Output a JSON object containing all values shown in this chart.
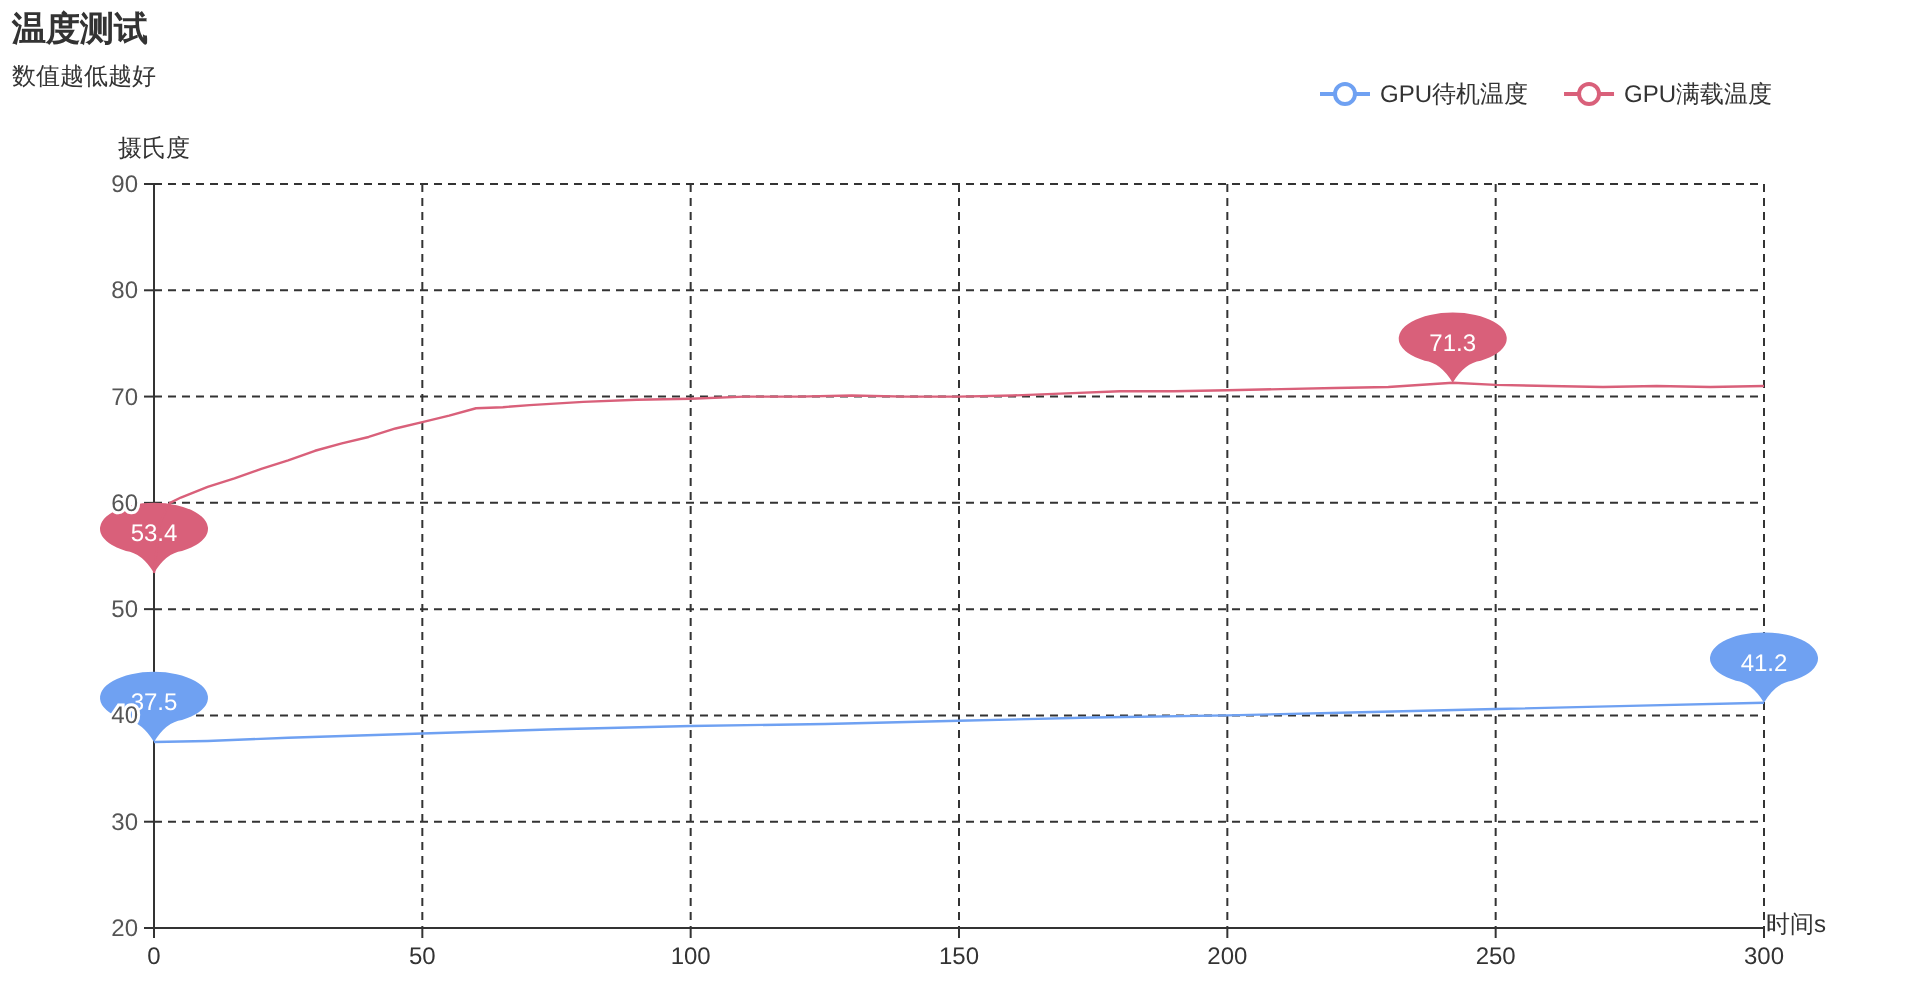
{
  "chart_data": {
    "type": "line",
    "title": "温度测试",
    "subtitle": "数值越低越好",
    "xlabel": "时间s",
    "ylabel": "摄氏度",
    "xlim": [
      0,
      300
    ],
    "xticks": [
      0,
      50,
      100,
      150,
      200,
      250,
      300
    ],
    "ylim": [
      20,
      90
    ],
    "yticks": [
      20,
      30,
      40,
      50,
      60,
      70,
      80,
      90
    ],
    "grid": true,
    "legend": "top right",
    "marker": "none",
    "line_style": "solid",
    "series": [
      {
        "name": "GPU待机温度",
        "color": "#6fa1f2",
        "x": [
          0,
          10,
          25,
          50,
          75,
          100,
          125,
          150,
          175,
          200,
          225,
          250,
          275,
          300
        ],
        "values": [
          37.5,
          37.6,
          37.9,
          38.3,
          38.7,
          39.0,
          39.2,
          39.5,
          39.8,
          40.0,
          40.3,
          40.6,
          40.9,
          41.2
        ]
      },
      {
        "name": "GPU满载温度",
        "color": "#d9607a",
        "x": [
          0,
          1,
          3,
          5,
          10,
          15,
          20,
          25,
          30,
          35,
          40,
          45,
          50,
          55,
          60,
          65,
          70,
          80,
          90,
          100,
          110,
          120,
          130,
          140,
          150,
          160,
          170,
          180,
          190,
          200,
          210,
          220,
          230,
          242,
          250,
          260,
          270,
          280,
          290,
          300
        ],
        "values": [
          53.4,
          58,
          60,
          60.5,
          61.5,
          62.3,
          63.2,
          64,
          64.9,
          65.6,
          66.2,
          67.0,
          67.6,
          68.2,
          68.9,
          69.0,
          69.2,
          69.5,
          69.7,
          69.8,
          70.0,
          70.0,
          70.1,
          70.0,
          70.0,
          70.1,
          70.3,
          70.5,
          70.5,
          70.6,
          70.7,
          70.8,
          70.9,
          71.3,
          71.1,
          71.0,
          70.9,
          71.0,
          70.9,
          71.0
        ]
      }
    ],
    "annotations": [
      {
        "text": "37.5",
        "x": 0,
        "y": 37.5
      },
      {
        "text": "41.2",
        "x": 300,
        "y": 41.2
      },
      {
        "text": "53.4",
        "x": 0,
        "y": 53.4
      },
      {
        "text": "71.3",
        "x": 242,
        "y": 71.3
      }
    ]
  }
}
